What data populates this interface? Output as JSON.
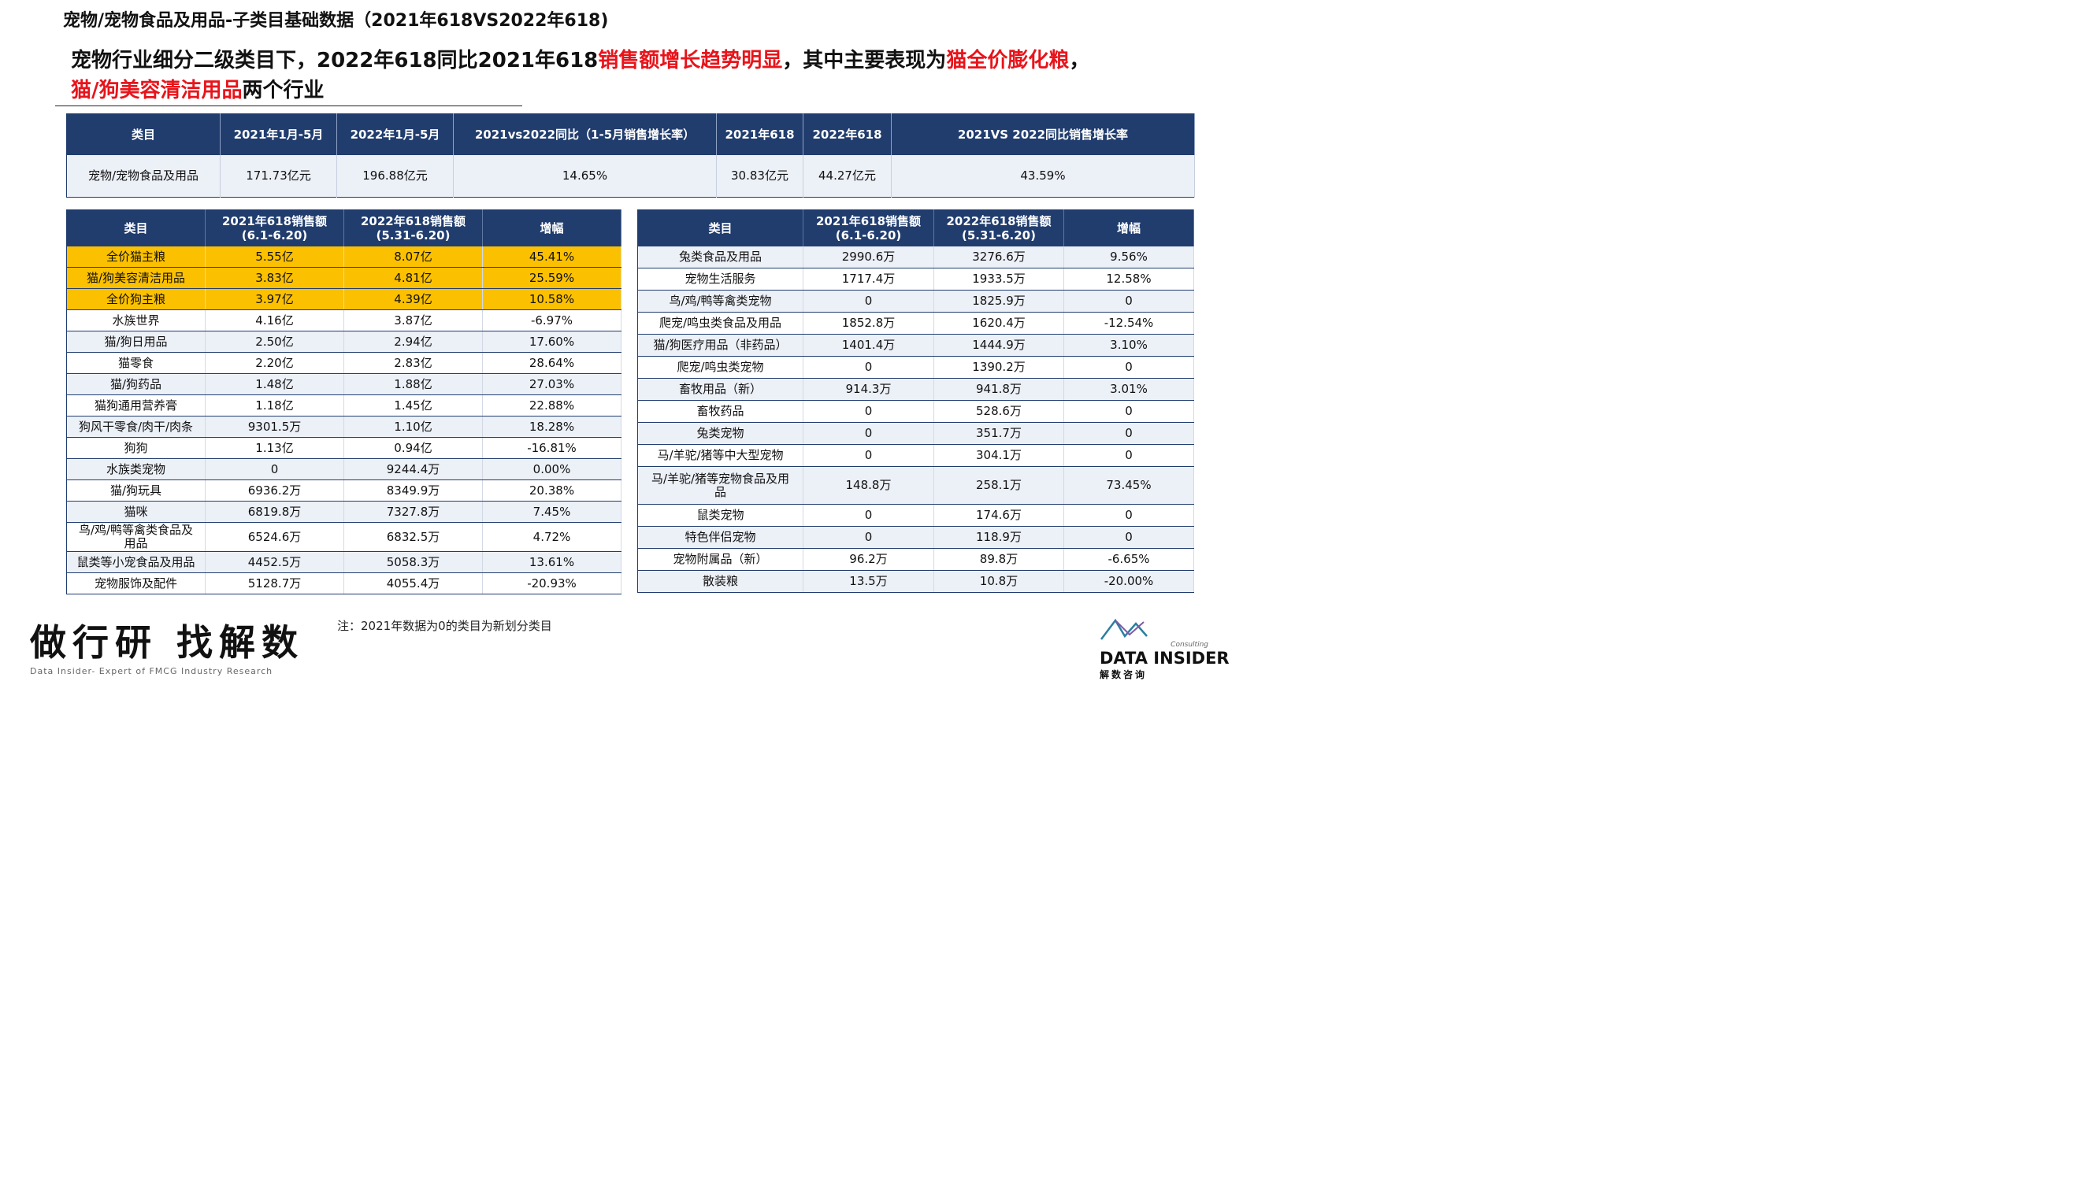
{
  "page_title": "宠物/宠物食品及用品-子类目基础数据（2021年618VS2022年618)",
  "headline": {
    "part1": "宠物行业细分二级类目下，2022年618同比2021年618",
    "highlight1": "销售额增长趋势明显",
    "part2": "，其中主要表现为",
    "highlight2": "猫全价膨化粮",
    "part3": "，",
    "highlight3": "猫/狗美容清洁用品",
    "part4": "两个行业"
  },
  "summary_table": {
    "headers": [
      "类目",
      "2021年1月-5月",
      "2022年1月-5月",
      "2021vs2022同比（1-5月销售增长率）",
      "2021年618",
      "2022年618",
      "2021VS 2022同比销售增长率"
    ],
    "row": [
      "宠物/宠物食品及用品",
      "171.73亿元",
      "196.88亿元",
      "14.65%",
      "30.83亿元",
      "44.27亿元",
      "43.59%"
    ]
  },
  "left_table": {
    "headers": [
      "类目",
      "2021年618销售额\n(6.1-6.20)",
      "2022年618销售额\n(5.31-6.20)",
      "增幅"
    ],
    "rows": [
      [
        "全价猫主粮",
        "5.55亿",
        "8.07亿",
        "45.41%"
      ],
      [
        "猫/狗美容清洁用品",
        "3.83亿",
        "4.81亿",
        "25.59%"
      ],
      [
        "全价狗主粮",
        "3.97亿",
        "4.39亿",
        "10.58%"
      ],
      [
        "水族世界",
        "4.16亿",
        "3.87亿",
        "-6.97%"
      ],
      [
        "猫/狗日用品",
        "2.50亿",
        "2.94亿",
        "17.60%"
      ],
      [
        "猫零食",
        "2.20亿",
        "2.83亿",
        "28.64%"
      ],
      [
        "猫/狗药品",
        "1.48亿",
        "1.88亿",
        "27.03%"
      ],
      [
        "猫狗通用营养膏",
        "1.18亿",
        "1.45亿",
        "22.88%"
      ],
      [
        "狗风干零食/肉干/肉条",
        "9301.5万",
        "1.10亿",
        "18.28%"
      ],
      [
        "狗狗",
        "1.13亿",
        "0.94亿",
        "-16.81%"
      ],
      [
        "水族类宠物",
        "0",
        "9244.4万",
        "0.00%"
      ],
      [
        "猫/狗玩具",
        "6936.2万",
        "8349.9万",
        "20.38%"
      ],
      [
        "猫咪",
        "6819.8万",
        "7327.8万",
        "7.45%"
      ],
      [
        "鸟/鸡/鸭等禽类食品及\n用品",
        "6524.6万",
        "6832.5万",
        "4.72%"
      ],
      [
        "鼠类等小宠食品及用品",
        "4452.5万",
        "5058.3万",
        "13.61%"
      ],
      [
        "宠物服饰及配件",
        "5128.7万",
        "4055.4万",
        "-20.93%"
      ]
    ]
  },
  "right_table": {
    "headers": [
      "类目",
      "2021年618销售额\n(6.1-6.20)",
      "2022年618销售额\n(5.31-6.20)",
      "增幅"
    ],
    "rows": [
      [
        "兔类食品及用品",
        "2990.6万",
        "3276.6万",
        "9.56%"
      ],
      [
        "宠物生活服务",
        "1717.4万",
        "1933.5万",
        "12.58%"
      ],
      [
        "鸟/鸡/鸭等禽类宠物",
        "0",
        "1825.9万",
        "0"
      ],
      [
        "爬宠/鸣虫类食品及用品",
        "1852.8万",
        "1620.4万",
        "-12.54%"
      ],
      [
        "猫/狗医疗用品（非药品）",
        "1401.4万",
        "1444.9万",
        "3.10%"
      ],
      [
        "爬宠/鸣虫类宠物",
        "0",
        "1390.2万",
        "0"
      ],
      [
        "畜牧用品（新）",
        "914.3万",
        "941.8万",
        "3.01%"
      ],
      [
        "畜牧药品",
        "0",
        "528.6万",
        "0"
      ],
      [
        "兔类宠物",
        "0",
        "351.7万",
        "0"
      ],
      [
        "马/羊驼/猪等中大型宠物",
        "0",
        "304.1万",
        "0"
      ],
      [
        "马/羊驼/猪等宠物食品及用\n品",
        "148.8万",
        "258.1万",
        "73.45%"
      ],
      [
        "鼠类宠物",
        "0",
        "174.6万",
        "0"
      ],
      [
        "特色伴侣宠物",
        "0",
        "118.9万",
        "0"
      ],
      [
        "宠物附属品（新）",
        "96.2万",
        "89.8万",
        "-6.65%"
      ],
      [
        "散装粮",
        "13.5万",
        "10.8万",
        "-20.00%"
      ]
    ]
  },
  "note": "注：2021年数据为0的类目为新划分类目",
  "brand": {
    "slogan_cn": "做行研 找解数",
    "slogan_en": "Data Insider- Expert of FMCG Industry Research"
  },
  "logo": {
    "consulting": "Consulting",
    "name": "DATA INSIDER",
    "sub_cn": "解数咨询",
    "colors": [
      "#2a7fa0",
      "#3a8fb7",
      "#7a5aa8"
    ]
  },
  "colors": {
    "header_bg": "#213d6e",
    "highlight_row": "#fbc000",
    "alt_row": "#ecf0f7",
    "accent_red": "#e8141b"
  }
}
